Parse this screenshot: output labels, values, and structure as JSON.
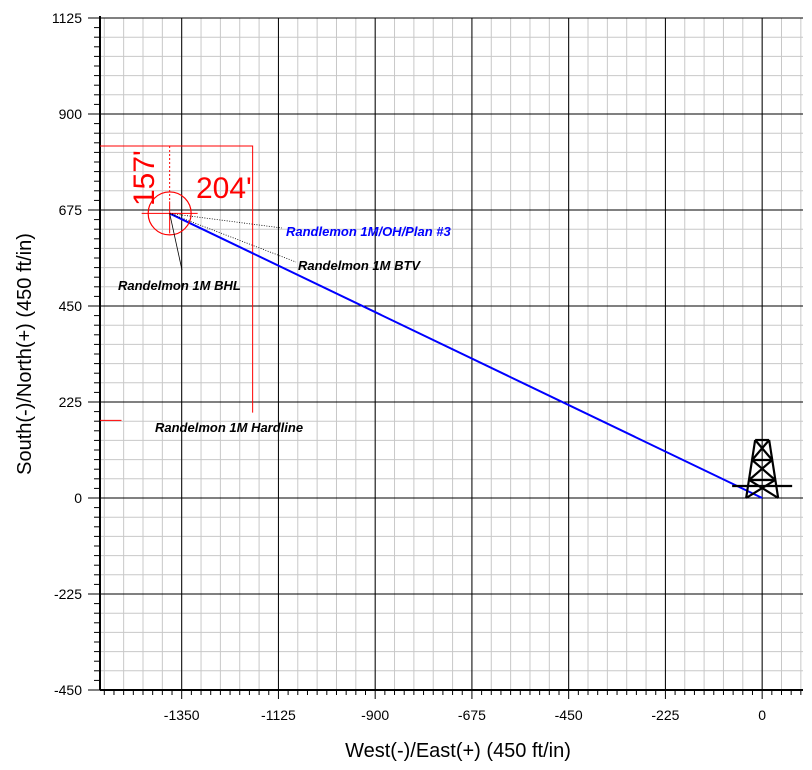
{
  "chart_data": {
    "type": "line",
    "title": "",
    "xlabel": "West(-)/East(+)  (450  ft/in)",
    "ylabel": "South(-)/North(+)  (450  ft/in)",
    "xlim": [
      -1540,
      95
    ],
    "ylim": [
      -450,
      1125
    ],
    "x_ticks": [
      -1350,
      -1125,
      -900,
      -675,
      -450,
      -225,
      0
    ],
    "y_ticks": [
      1125,
      900,
      675,
      450,
      225,
      0,
      -225,
      -450
    ],
    "x_tick_labels": [
      "-1350",
      "-1125",
      "-900",
      "-675",
      "-450",
      "-225",
      "0"
    ],
    "y_tick_labels": [
      "1125",
      "900",
      "675",
      "450",
      "225",
      "0",
      "-225",
      "-450"
    ],
    "grid": true,
    "minor_grid_step": 45,
    "series": [
      {
        "name": "Randlemon 1M/OH/Plan #3",
        "color": "#0000ff",
        "points": [
          [
            0,
            0
          ],
          [
            -1378,
            667
          ]
        ]
      }
    ],
    "hardline": {
      "label": "Randelmon 1M Hardline",
      "color": "#ff0000",
      "points": [
        [
          -1540,
          825
        ],
        [
          -1185,
          825
        ],
        [
          -1185,
          200
        ]
      ],
      "stub": [
        [
          -1540,
          182
        ],
        [
          -1490,
          182
        ]
      ]
    },
    "target_circle": {
      "x": -1378,
      "y": 667,
      "radius": 50,
      "color": "#ff0000"
    },
    "dimension_labels": [
      {
        "text": "157'",
        "rotated": true
      },
      {
        "text": "204'",
        "rotated": false
      }
    ],
    "annotations": [
      {
        "text": "Randlemon 1M/OH/Plan #3",
        "color": "#0000ff"
      },
      {
        "text": "Randelmon 1M BTV",
        "color": "#000000"
      },
      {
        "text": "Randelmon 1M BHL",
        "color": "#000000"
      },
      {
        "text": "Randelmon 1M Hardline",
        "color": "#000000"
      }
    ],
    "rig_icon": "drilling-rig-icon"
  }
}
